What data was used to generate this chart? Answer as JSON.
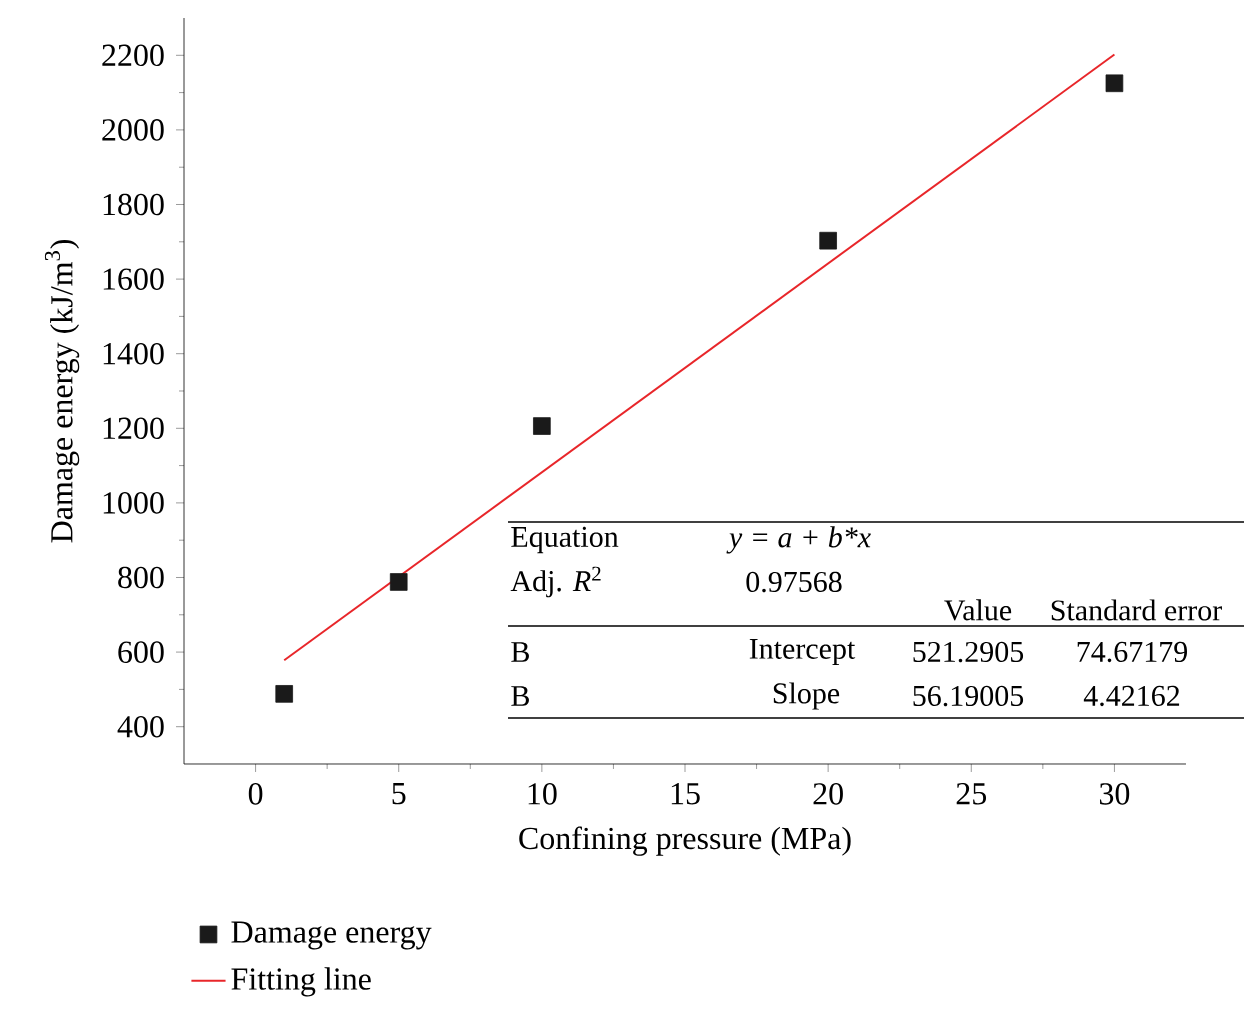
{
  "chart_data": {
    "type": "scatter",
    "xlabel": "Confining pressure (MPa)",
    "ylabel": "Damage energy (kJ/m$^{3}$)",
    "xlim": [
      -2.5,
      32.5
    ],
    "ylim": [
      300,
      2300
    ],
    "xticks": [
      0,
      5,
      10,
      15,
      20,
      25,
      30
    ],
    "yticks": [
      400,
      600,
      800,
      1000,
      1200,
      1400,
      1600,
      1800,
      2000,
      2200
    ],
    "grid": false,
    "legend": "bottom left",
    "marker": "square",
    "series": [
      {
        "name": "Damage energy",
        "color": "#1a1a1a",
        "x": [
          1,
          5,
          10,
          20,
          30
        ],
        "values": [
          488,
          788,
          1206,
          1703,
          2125
        ]
      },
      {
        "name": "Fitting line",
        "type": "line",
        "color": "#e8262a",
        "marker": "none",
        "x": [
          1,
          30
        ],
        "values": [
          578,
          2202
        ]
      }
    ],
    "annotations": [
      "Equation",
      "y = a + b*x",
      "Adj. *R*$^{2}$",
      "0.97568",
      "Value",
      "Standard error",
      "B",
      "Intercept",
      "521.2905",
      "74.67179",
      "B",
      "Slope",
      "56.19005",
      "4.42162"
    ]
  }
}
